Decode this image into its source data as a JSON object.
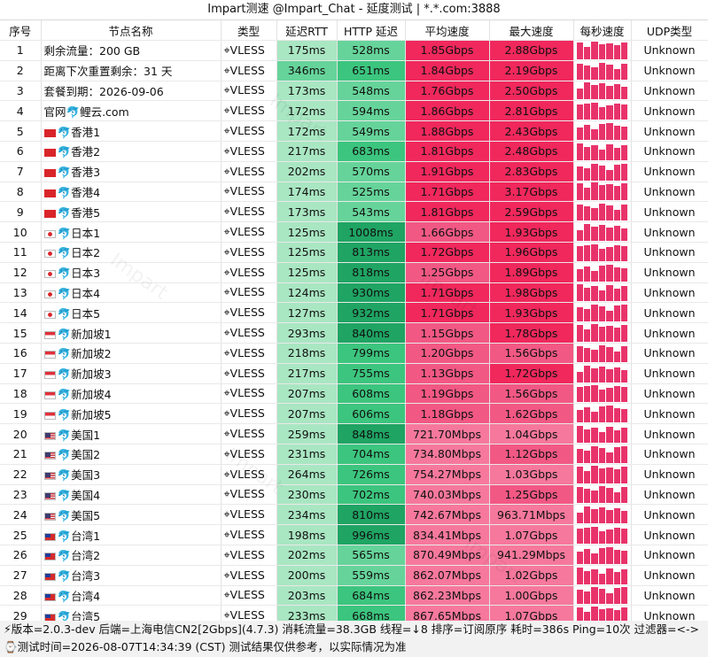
{
  "title": "Impart测速 @Impart_Chat - 延度测试 | *.*.com:3888",
  "columns": [
    "序号",
    "节点名称",
    "类型",
    "延迟RTT",
    "HTTP 延迟",
    "平均速度",
    "最大速度",
    "每秒速度",
    "UDP类型"
  ],
  "type_icon": "⌖",
  "rows": [
    {
      "idx": "1",
      "flag": "",
      "name": "剩余流量：200 GB",
      "type": "VLESS",
      "rtt": "175ms",
      "http": "528ms",
      "avg": "1.85Gbps",
      "max": "2.88Gbps",
      "udp": "Unknown"
    },
    {
      "idx": "2",
      "flag": "",
      "name": "距离下次重置剩余：31 天",
      "type": "VLESS",
      "rtt": "346ms",
      "http": "651ms",
      "avg": "1.84Gbps",
      "max": "2.19Gbps",
      "udp": "Unknown"
    },
    {
      "idx": "3",
      "flag": "",
      "name": "套餐到期：2026-09-06",
      "type": "VLESS",
      "rtt": "173ms",
      "http": "548ms",
      "avg": "1.76Gbps",
      "max": "2.50Gbps",
      "udp": "Unknown"
    },
    {
      "idx": "4",
      "flag": "",
      "name": "官网🐬鲤云.com",
      "type": "VLESS",
      "rtt": "172ms",
      "http": "594ms",
      "avg": "1.86Gbps",
      "max": "2.81Gbps",
      "udp": "Unknown"
    },
    {
      "idx": "5",
      "flag": "hk",
      "name": "🐬香港1",
      "type": "VLESS",
      "rtt": "172ms",
      "http": "549ms",
      "avg": "1.88Gbps",
      "max": "2.43Gbps",
      "udp": "Unknown"
    },
    {
      "idx": "6",
      "flag": "hk",
      "name": "🐬香港2",
      "type": "VLESS",
      "rtt": "217ms",
      "http": "683ms",
      "avg": "1.81Gbps",
      "max": "2.48Gbps",
      "udp": "Unknown"
    },
    {
      "idx": "7",
      "flag": "hk",
      "name": "🐬香港3",
      "type": "VLESS",
      "rtt": "202ms",
      "http": "570ms",
      "avg": "1.91Gbps",
      "max": "2.83Gbps",
      "udp": "Unknown"
    },
    {
      "idx": "8",
      "flag": "hk",
      "name": "🐬香港4",
      "type": "VLESS",
      "rtt": "174ms",
      "http": "525ms",
      "avg": "1.71Gbps",
      "max": "3.17Gbps",
      "udp": "Unknown"
    },
    {
      "idx": "9",
      "flag": "hk",
      "name": "🐬香港5",
      "type": "VLESS",
      "rtt": "173ms",
      "http": "543ms",
      "avg": "1.81Gbps",
      "max": "2.59Gbps",
      "udp": "Unknown"
    },
    {
      "idx": "10",
      "flag": "jp",
      "name": "🐬日本1",
      "type": "VLESS",
      "rtt": "125ms",
      "http": "1008ms",
      "avg": "1.66Gbps",
      "max": "1.93Gbps",
      "udp": "Unknown"
    },
    {
      "idx": "11",
      "flag": "jp",
      "name": "🐬日本2",
      "type": "VLESS",
      "rtt": "125ms",
      "http": "813ms",
      "avg": "1.72Gbps",
      "max": "1.96Gbps",
      "udp": "Unknown"
    },
    {
      "idx": "12",
      "flag": "jp",
      "name": "🐬日本3",
      "type": "VLESS",
      "rtt": "125ms",
      "http": "818ms",
      "avg": "1.25Gbps",
      "max": "1.89Gbps",
      "udp": "Unknown"
    },
    {
      "idx": "13",
      "flag": "jp",
      "name": "🐬日本4",
      "type": "VLESS",
      "rtt": "124ms",
      "http": "930ms",
      "avg": "1.71Gbps",
      "max": "1.98Gbps",
      "udp": "Unknown"
    },
    {
      "idx": "14",
      "flag": "jp",
      "name": "🐬日本5",
      "type": "VLESS",
      "rtt": "127ms",
      "http": "932ms",
      "avg": "1.71Gbps",
      "max": "1.93Gbps",
      "udp": "Unknown"
    },
    {
      "idx": "15",
      "flag": "sg",
      "name": "🐬新加坡1",
      "type": "VLESS",
      "rtt": "293ms",
      "http": "840ms",
      "avg": "1.15Gbps",
      "max": "1.78Gbps",
      "udp": "Unknown"
    },
    {
      "idx": "16",
      "flag": "sg",
      "name": "🐬新加坡2",
      "type": "VLESS",
      "rtt": "218ms",
      "http": "799ms",
      "avg": "1.20Gbps",
      "max": "1.56Gbps",
      "udp": "Unknown"
    },
    {
      "idx": "17",
      "flag": "sg",
      "name": "🐬新加坡3",
      "type": "VLESS",
      "rtt": "217ms",
      "http": "755ms",
      "avg": "1.13Gbps",
      "max": "1.72Gbps",
      "udp": "Unknown"
    },
    {
      "idx": "18",
      "flag": "sg",
      "name": "🐬新加坡4",
      "type": "VLESS",
      "rtt": "207ms",
      "http": "608ms",
      "avg": "1.19Gbps",
      "max": "1.56Gbps",
      "udp": "Unknown"
    },
    {
      "idx": "19",
      "flag": "sg",
      "name": "🐬新加坡5",
      "type": "VLESS",
      "rtt": "207ms",
      "http": "606ms",
      "avg": "1.18Gbps",
      "max": "1.62Gbps",
      "udp": "Unknown"
    },
    {
      "idx": "20",
      "flag": "us",
      "name": "🐬美国1",
      "type": "VLESS",
      "rtt": "259ms",
      "http": "848ms",
      "avg": "721.70Mbps",
      "max": "1.04Gbps",
      "udp": "Unknown"
    },
    {
      "idx": "21",
      "flag": "us",
      "name": "🐬美国2",
      "type": "VLESS",
      "rtt": "231ms",
      "http": "704ms",
      "avg": "734.80Mbps",
      "max": "1.12Gbps",
      "udp": "Unknown"
    },
    {
      "idx": "22",
      "flag": "us",
      "name": "🐬美国3",
      "type": "VLESS",
      "rtt": "264ms",
      "http": "726ms",
      "avg": "754.27Mbps",
      "max": "1.03Gbps",
      "udp": "Unknown"
    },
    {
      "idx": "23",
      "flag": "us",
      "name": "🐬美国4",
      "type": "VLESS",
      "rtt": "230ms",
      "http": "702ms",
      "avg": "740.03Mbps",
      "max": "1.25Gbps",
      "udp": "Unknown"
    },
    {
      "idx": "24",
      "flag": "us",
      "name": "🐬美国5",
      "type": "VLESS",
      "rtt": "234ms",
      "http": "810ms",
      "avg": "742.67Mbps",
      "max": "963.71Mbps",
      "udp": "Unknown"
    },
    {
      "idx": "25",
      "flag": "tw",
      "name": "🐬台湾1",
      "type": "VLESS",
      "rtt": "198ms",
      "http": "996ms",
      "avg": "834.41Mbps",
      "max": "1.07Gbps",
      "udp": "Unknown"
    },
    {
      "idx": "26",
      "flag": "tw",
      "name": "🐬台湾2",
      "type": "VLESS",
      "rtt": "202ms",
      "http": "565ms",
      "avg": "870.49Mbps",
      "max": "941.29Mbps",
      "udp": "Unknown"
    },
    {
      "idx": "27",
      "flag": "tw",
      "name": "🐬台湾3",
      "type": "VLESS",
      "rtt": "200ms",
      "http": "559ms",
      "avg": "862.07Mbps",
      "max": "1.02Gbps",
      "udp": "Unknown"
    },
    {
      "idx": "28",
      "flag": "tw",
      "name": "🐬台湾4",
      "type": "VLESS",
      "rtt": "203ms",
      "http": "684ms",
      "avg": "862.23Mbps",
      "max": "1.00Gbps",
      "udp": "Unknown"
    },
    {
      "idx": "29",
      "flag": "tw",
      "name": "🐬台湾5",
      "type": "VLESS",
      "rtt": "233ms",
      "http": "668ms",
      "avg": "867.65Mbps",
      "max": "1.07Gbps",
      "udp": "Unknown"
    }
  ],
  "footer": {
    "line1": "⚡版本=2.0.3-dev  后端=上海电信CN2[2Gbps](4.7.3) 消耗流量=38.3GB  线程=↓8  排序=订阅原序  耗时=386s  Ping=10次  过滤器=<->",
    "line2": "⌚测试时间=2026-08-07T14:34:39 (CST)  测试结果仅供参考，以实际情况为准"
  },
  "colors": {
    "rtt_light": "#a9e6c2",
    "rtt_mid": "#66d49a",
    "http_mid": "#3cc57e",
    "http_dark": "#1fa463",
    "speed_hot": "#f0285c",
    "speed_warm": "#f25884",
    "speed_mild": "#f6789c",
    "spark": "#e8336a"
  },
  "watermark": "Impart"
}
